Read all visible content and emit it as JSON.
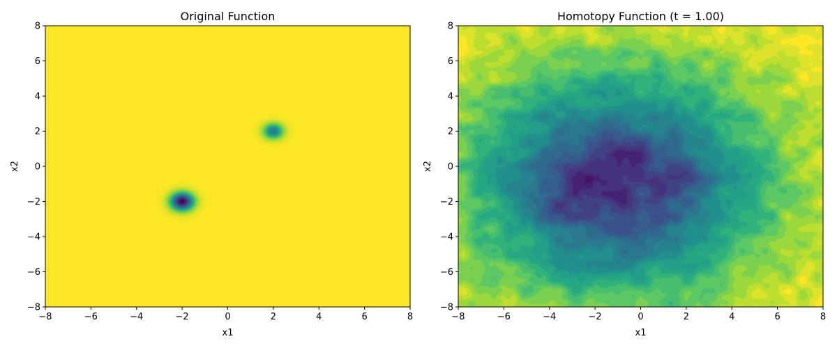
{
  "chart_data": [
    {
      "type": "heatmap",
      "title": "Original Function",
      "xlabel": "x1",
      "ylabel": "x2",
      "xlim": [
        -8,
        8
      ],
      "ylim": [
        -8,
        8
      ],
      "xticks": [
        -8,
        -6,
        -4,
        -2,
        0,
        2,
        4,
        6,
        8
      ],
      "yticks": [
        -8,
        -6,
        -4,
        -2,
        0,
        2,
        4,
        6,
        8
      ],
      "colormap": "viridis",
      "background_color": "#f7e51f",
      "minima": [
        {
          "x": -2,
          "y": -2,
          "depth": 1.0,
          "width": 0.35
        },
        {
          "x": 2,
          "y": 2,
          "depth": 0.6,
          "width": 0.3
        }
      ]
    },
    {
      "type": "heatmap",
      "title": "Homotopy Function (t = 1.00)",
      "xlabel": "x1",
      "ylabel": "x2",
      "xlim": [
        -8,
        8
      ],
      "ylim": [
        -8,
        8
      ],
      "xticks": [
        -8,
        -6,
        -4,
        -2,
        0,
        2,
        4,
        6,
        8
      ],
      "yticks": [
        -8,
        -6,
        -4,
        -2,
        0,
        2,
        4,
        6,
        8
      ],
      "colormap": "viridis",
      "center": {
        "x": -1,
        "y": -1
      },
      "low_regions": [
        {
          "x": -1.2,
          "y": -1.7
        },
        {
          "x": -2.8,
          "y": -1.0
        },
        {
          "x": -3.7,
          "y": -2.6
        },
        {
          "x": 1.8,
          "y": -0.5
        },
        {
          "x": -0.7,
          "y": 1.0
        }
      ]
    }
  ]
}
